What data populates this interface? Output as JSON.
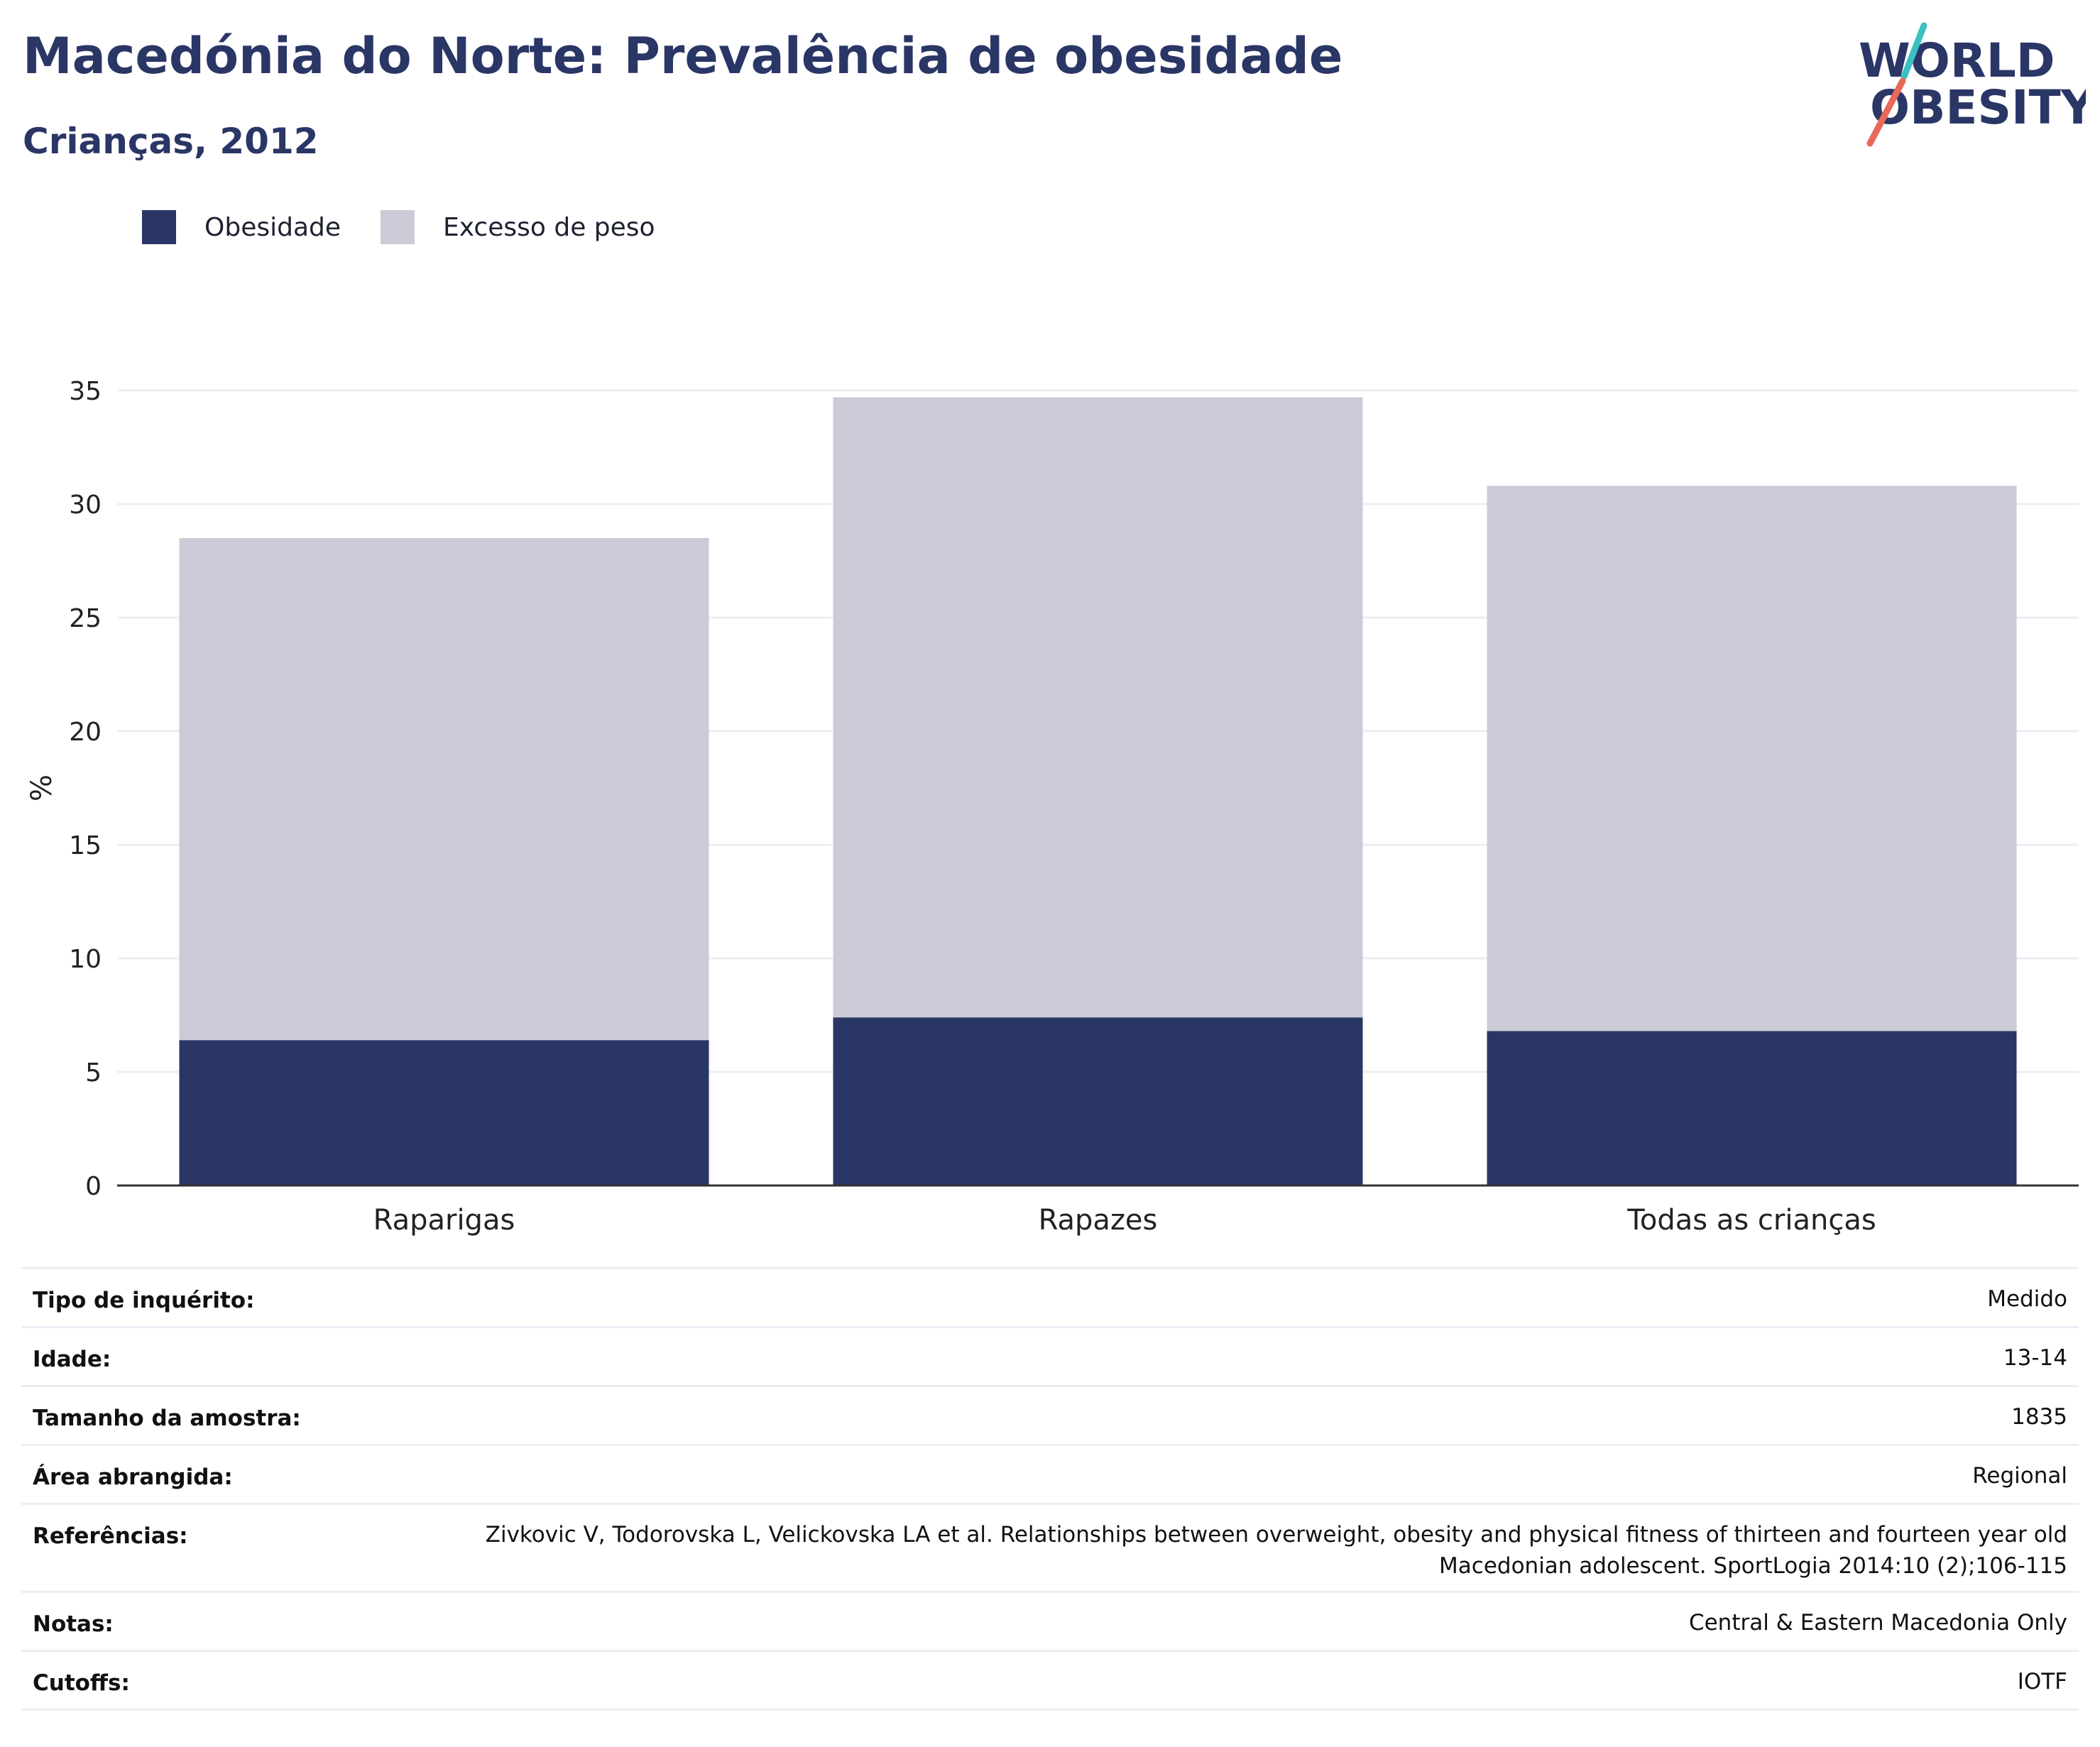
{
  "title": "Macedónia do Norte: Prevalência de obesidade",
  "subtitle": "Crianças, 2012",
  "logo": {
    "line1": "WORLD",
    "line2": "OBESITY"
  },
  "colors": {
    "obesity": "#2a3665",
    "overweight": "#cacbd7",
    "title": "#2a3665",
    "grid": "#eceef4",
    "axis": "#333333"
  },
  "legend": [
    {
      "label": "Obesidade",
      "color": "#2a3665"
    },
    {
      "label": "Excesso de peso",
      "color": "#cacbd7"
    }
  ],
  "chart_data": {
    "type": "bar",
    "stacked": true,
    "categories": [
      "Raparigas",
      "Rapazes",
      "Todas as crianças"
    ],
    "series": [
      {
        "name": "Obesidade",
        "values": [
          6.4,
          7.4,
          6.8
        ]
      },
      {
        "name": "Excesso de peso",
        "values": [
          22.1,
          27.3,
          24.0
        ]
      }
    ],
    "totals": [
      28.5,
      34.7,
      30.8
    ],
    "ylabel": "%",
    "ylim": [
      0,
      35
    ],
    "yticks": [
      0,
      5,
      10,
      15,
      20,
      25,
      30,
      35
    ],
    "grid": true,
    "legend_position": "top-left"
  },
  "metadata": [
    {
      "key": "Tipo de inquérito:",
      "value": "Medido"
    },
    {
      "key": "Idade:",
      "value": "13-14"
    },
    {
      "key": "Tamanho da amostra:",
      "value": "1835"
    },
    {
      "key": "Área abrangida:",
      "value": "Regional"
    },
    {
      "key": "Referências:",
      "value": "Zivkovic V, Todorovska L, Velickovska LA et al. Relationships between overweight, obesity and physical fitness of thirteen and fourteen year old Macedonian adolescent. SportLogia 2014:10 (2);106-115"
    },
    {
      "key": "Notas:",
      "value": "Central & Eastern Macedonia Only"
    },
    {
      "key": "Cutoffs:",
      "value": "IOTF"
    }
  ]
}
